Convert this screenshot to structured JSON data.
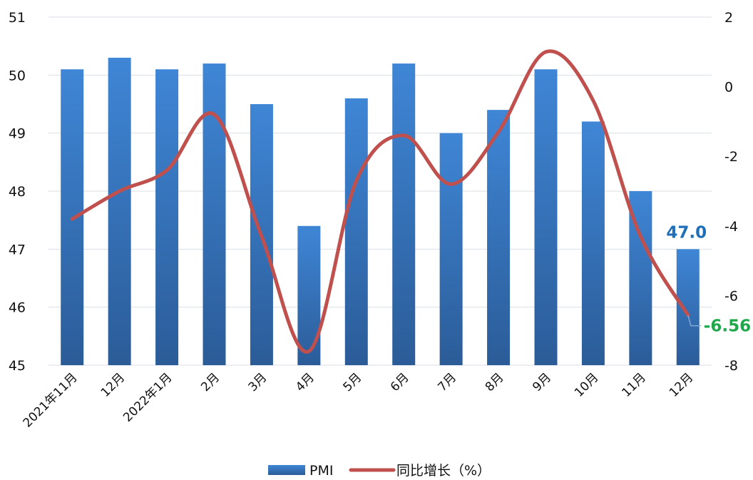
{
  "chart_data": {
    "type": "bar",
    "categories": [
      "2021年11月",
      "12月",
      "2022年1月",
      "2月",
      "3月",
      "4月",
      "5月",
      "6月",
      "7月",
      "8月",
      "9月",
      "10月",
      "11月",
      "12月"
    ],
    "series": [
      {
        "name": "PMI",
        "type": "bar",
        "axis": "left",
        "values": [
          50.1,
          50.3,
          50.1,
          50.2,
          49.5,
          47.4,
          49.6,
          50.2,
          49.0,
          49.4,
          50.1,
          49.2,
          48.0,
          47.0
        ],
        "color": "#3a7bc8"
      },
      {
        "name": "同比增长（%）",
        "type": "line",
        "axis": "right",
        "values": [
          -3.8,
          -3.0,
          -2.4,
          -0.8,
          -4.3,
          -7.6,
          -2.7,
          -1.4,
          -2.8,
          -1.3,
          1.0,
          -0.4,
          -4.3,
          -6.56
        ],
        "color": "#c0504d"
      }
    ],
    "y_left": {
      "min": 45,
      "max": 51,
      "ticks": [
        45,
        46,
        47,
        48,
        49,
        50,
        51
      ]
    },
    "y_right": {
      "min": -8,
      "max": 2,
      "ticks": [
        -8,
        -6,
        -4,
        -2,
        0,
        2
      ]
    },
    "data_labels": [
      {
        "series": "PMI",
        "category": "12月",
        "text": "47.0",
        "color": "#1f6fb8"
      },
      {
        "series": "同比增长（%）",
        "category": "12月",
        "text": "-6.56",
        "color": "#1fa84a"
      }
    ],
    "grid": true,
    "legend_position": "bottom"
  }
}
